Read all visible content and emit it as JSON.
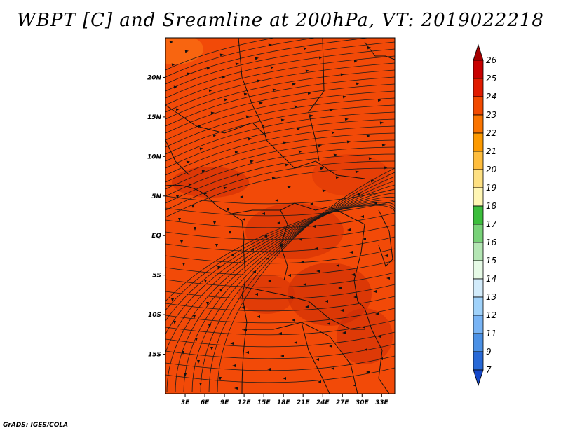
{
  "title": "WBPT [C] and Sreamline at 200hPa, VT: 2019022218",
  "credit": "GrADS: IGES/COLA",
  "map": {
    "lon_range": [
      0,
      35
    ],
    "lat_range": [
      -20,
      25
    ],
    "y_ticks": [
      "20N",
      "15N",
      "10N",
      "5N",
      "EQ",
      "5S",
      "10S",
      "15S"
    ],
    "y_tick_values": [
      20,
      15,
      10,
      5,
      0,
      -5,
      -10,
      -15
    ],
    "x_ticks": [
      "3E",
      "6E",
      "9E",
      "12E",
      "15E",
      "18E",
      "21E",
      "24E",
      "27E",
      "30E",
      "33E"
    ],
    "x_tick_values": [
      3,
      6,
      9,
      12,
      15,
      18,
      21,
      24,
      27,
      30,
      33
    ],
    "field_colors": {
      "base": "#f24a08",
      "dark": "#cf2d05",
      "light": "#f96a12"
    }
  },
  "colorbar": {
    "labels": [
      "26",
      "25",
      "24",
      "23",
      "22",
      "21",
      "20",
      "19",
      "18",
      "17",
      "16",
      "15",
      "14",
      "13",
      "12",
      "11",
      "9",
      "7"
    ],
    "colors": [
      "#a50000",
      "#c80000",
      "#e11b00",
      "#f24a00",
      "#fa7400",
      "#fd9a00",
      "#ffbd3c",
      "#fee082",
      "#fff6b4",
      "#3cbe3c",
      "#78d278",
      "#b4e6b4",
      "#e6fae6",
      "#d2ebfa",
      "#a0d2fa",
      "#78b4f5",
      "#4b91e6",
      "#2869d7",
      "#1446c8"
    ]
  }
}
